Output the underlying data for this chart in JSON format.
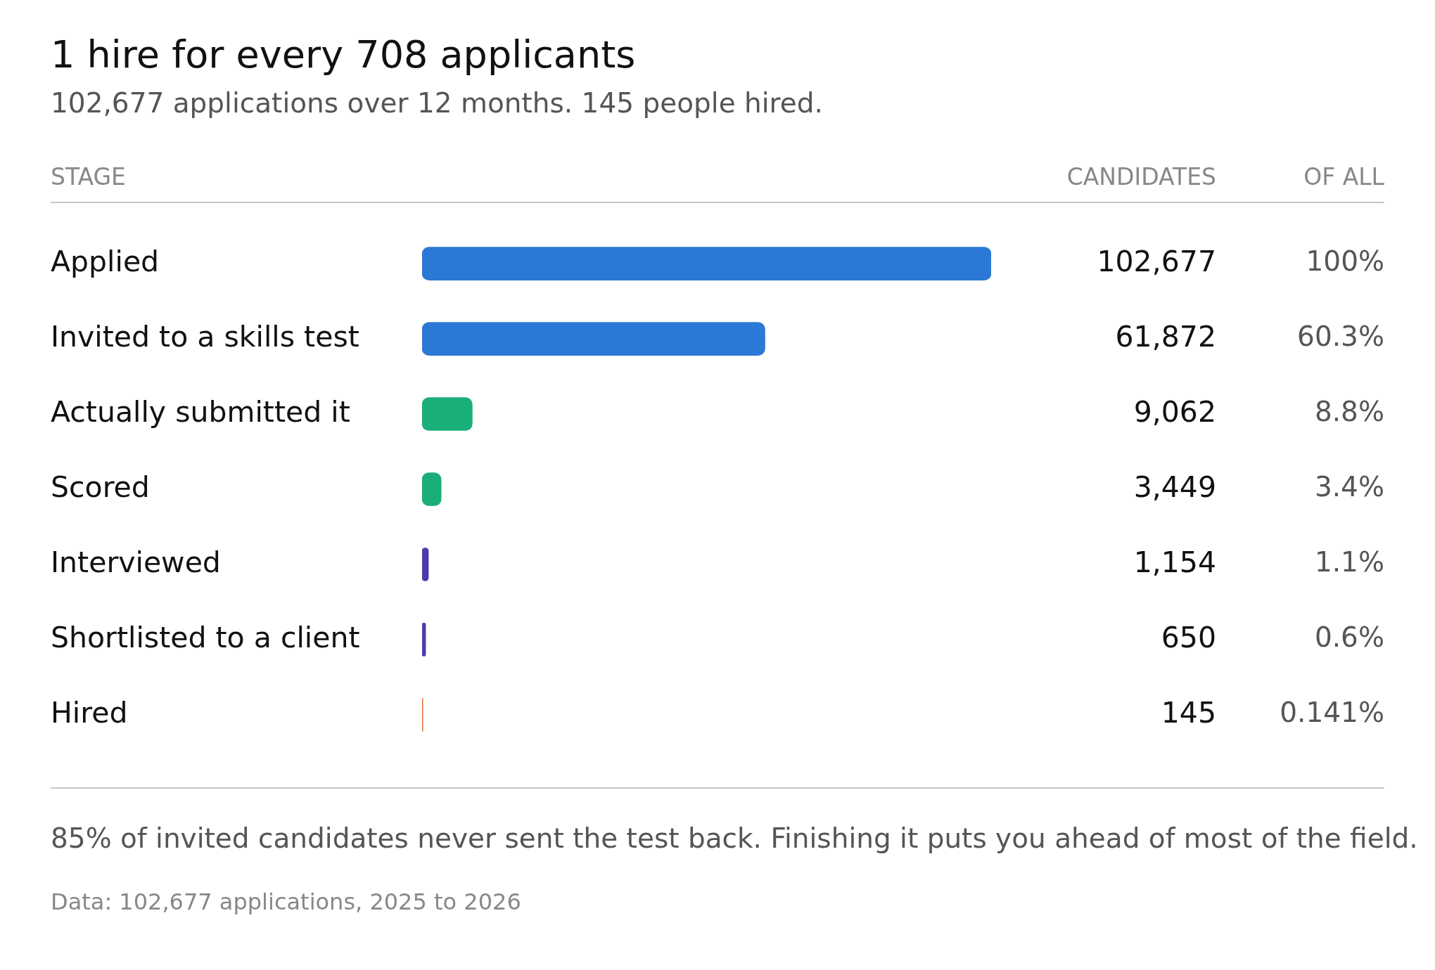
{
  "chart_data": {
    "type": "bar",
    "orientation": "horizontal",
    "title": "1 hire for every 708 applicants",
    "subtitle": "102,677 applications over 12 months. 145 people hired.",
    "ylabel": "STAGE",
    "xlabel": "CANDIDATES",
    "categories": [
      "Applied",
      "Invited to a skills test",
      "Actually submitted it",
      "Scored",
      "Interviewed",
      "Shortlisted to a client",
      "Hired"
    ],
    "values": [
      102677,
      61872,
      9062,
      3449,
      1154,
      650,
      145
    ],
    "colors": [
      "#2b78d6",
      "#2b78d6",
      "#1aaf78",
      "#1aaf78",
      "#4f3aab",
      "#4f3aab",
      "#e8683a"
    ],
    "value_labels": [
      "102,677",
      "61,872",
      "9,062",
      "3,449",
      "1,154",
      "650",
      "145"
    ],
    "grid": false,
    "legend": false,
    "annotations": [
      "OF ALL",
      "100%",
      "60.3%",
      "8.8%",
      "3.4%",
      "1.1%",
      "0.6%",
      "0.141%",
      "85% of invited candidates never sent the test back. Finishing it puts you ahead of most of the field.",
      "Data: 102,677 applications, 2025 to 2026"
    ]
  }
}
